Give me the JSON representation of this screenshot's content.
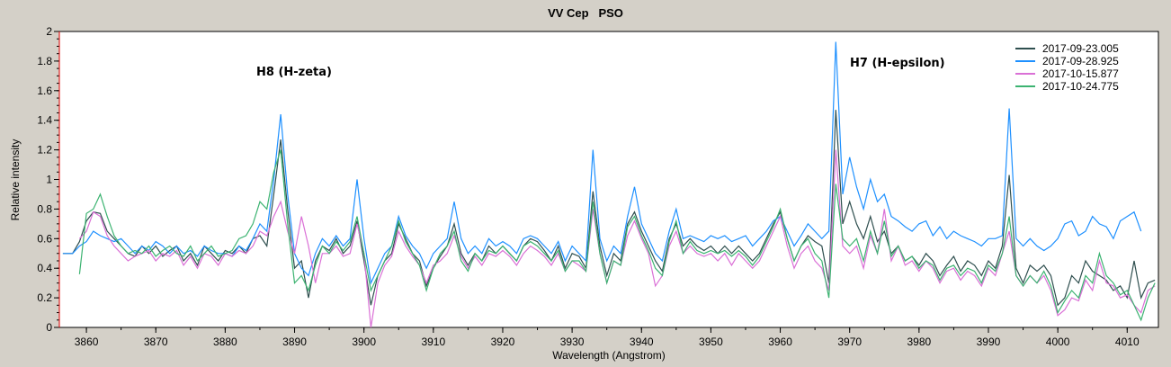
{
  "chart_data": {
    "type": "line",
    "title": "VV Cep   PSO",
    "xlabel": "Wavelength (Angstrom)",
    "ylabel": "Relative intensity",
    "xlim": [
      3856.1,
      4014.5
    ],
    "ylim": [
      0,
      2
    ],
    "xticks": [
      3860,
      3870,
      3880,
      3890,
      3900,
      3910,
      3920,
      3930,
      3940,
      3950,
      3960,
      3970,
      3980,
      3990,
      4000,
      4010
    ],
    "yticks": [
      0,
      0.2,
      0.4,
      0.6,
      0.8,
      1,
      1.2,
      1.4,
      1.6,
      1.8,
      2
    ],
    "legend_position": "top-right",
    "annotations": [
      {
        "text": "H8 (H-zeta)",
        "x": 3889,
        "y": 1.75
      },
      {
        "text": "H7 (H-epsilon)",
        "x": 3974,
        "y": 1.81
      }
    ],
    "x_start": 3857,
    "x_step": 1,
    "series": [
      {
        "name": "2017-09-23.005",
        "color": "#2f4f4f",
        "values": [
          0.5,
          0.5,
          0.58,
          0.72,
          0.78,
          0.77,
          0.65,
          0.6,
          0.55,
          0.5,
          0.48,
          0.55,
          0.5,
          0.55,
          0.48,
          0.52,
          0.55,
          0.45,
          0.5,
          0.42,
          0.55,
          0.5,
          0.45,
          0.52,
          0.5,
          0.55,
          0.5,
          0.6,
          0.62,
          0.55,
          0.9,
          1.27,
          0.8,
          0.4,
          0.45,
          0.2,
          0.45,
          0.55,
          0.52,
          0.6,
          0.5,
          0.55,
          0.72,
          0.45,
          0.15,
          0.35,
          0.45,
          0.5,
          0.7,
          0.6,
          0.5,
          0.45,
          0.28,
          0.4,
          0.48,
          0.55,
          0.7,
          0.5,
          0.42,
          0.5,
          0.45,
          0.55,
          0.5,
          0.55,
          0.5,
          0.45,
          0.55,
          0.6,
          0.58,
          0.52,
          0.45,
          0.55,
          0.4,
          0.5,
          0.48,
          0.4,
          0.92,
          0.55,
          0.35,
          0.5,
          0.45,
          0.7,
          0.78,
          0.65,
          0.55,
          0.45,
          0.38,
          0.6,
          0.7,
          0.55,
          0.6,
          0.55,
          0.52,
          0.55,
          0.5,
          0.55,
          0.5,
          0.55,
          0.5,
          0.45,
          0.5,
          0.6,
          0.7,
          0.78,
          0.6,
          0.45,
          0.55,
          0.62,
          0.58,
          0.55,
          0.3,
          1.47,
          0.7,
          0.85,
          0.7,
          0.6,
          0.75,
          0.58,
          0.65,
          0.5,
          0.55,
          0.45,
          0.48,
          0.42,
          0.5,
          0.45,
          0.35,
          0.42,
          0.48,
          0.38,
          0.45,
          0.42,
          0.35,
          0.45,
          0.4,
          0.55,
          1.03,
          0.4,
          0.3,
          0.42,
          0.38,
          0.42,
          0.35,
          0.15,
          0.2,
          0.35,
          0.3,
          0.45,
          0.38,
          0.35,
          0.32,
          0.25,
          0.28,
          0.2,
          0.45,
          0.2,
          0.3,
          0.32
        ]
      },
      {
        "name": "2017-09-28.925",
        "color": "#1e90ff",
        "values": [
          0.5,
          0.5,
          0.55,
          0.58,
          0.65,
          0.62,
          0.6,
          0.58,
          0.6,
          0.55,
          0.5,
          0.55,
          0.52,
          0.58,
          0.55,
          0.5,
          0.55,
          0.5,
          0.52,
          0.48,
          0.55,
          0.52,
          0.5,
          0.5,
          0.48,
          0.55,
          0.52,
          0.6,
          0.7,
          0.65,
          1.0,
          1.44,
          0.9,
          0.5,
          0.4,
          0.35,
          0.5,
          0.6,
          0.55,
          0.62,
          0.55,
          0.6,
          1.0,
          0.6,
          0.3,
          0.4,
          0.5,
          0.55,
          0.75,
          0.62,
          0.55,
          0.5,
          0.4,
          0.5,
          0.55,
          0.6,
          0.85,
          0.6,
          0.5,
          0.55,
          0.5,
          0.6,
          0.55,
          0.58,
          0.55,
          0.5,
          0.6,
          0.62,
          0.6,
          0.55,
          0.5,
          0.58,
          0.45,
          0.55,
          0.5,
          0.45,
          1.2,
          0.6,
          0.45,
          0.55,
          0.5,
          0.75,
          0.95,
          0.7,
          0.6,
          0.5,
          0.45,
          0.65,
          0.8,
          0.6,
          0.62,
          0.6,
          0.58,
          0.62,
          0.6,
          0.62,
          0.58,
          0.6,
          0.62,
          0.55,
          0.6,
          0.65,
          0.72,
          0.75,
          0.65,
          0.55,
          0.62,
          0.7,
          0.65,
          0.6,
          0.65,
          1.93,
          0.9,
          1.15,
          0.95,
          0.8,
          1.0,
          0.85,
          0.9,
          0.75,
          0.72,
          0.68,
          0.65,
          0.7,
          0.72,
          0.62,
          0.68,
          0.6,
          0.65,
          0.62,
          0.6,
          0.58,
          0.55,
          0.6,
          0.6,
          0.62,
          1.48,
          0.6,
          0.55,
          0.6,
          0.55,
          0.52,
          0.55,
          0.6,
          0.7,
          0.72,
          0.62,
          0.65,
          0.75,
          0.7,
          0.68,
          0.6,
          0.72,
          0.75,
          0.78,
          0.65,
          null,
          null
        ]
      },
      {
        "name": "2017-10-15.877",
        "color": "#da70d6",
        "values": [
          null,
          null,
          0.6,
          0.65,
          0.78,
          0.75,
          0.62,
          0.55,
          0.5,
          0.45,
          0.48,
          0.5,
          0.52,
          0.45,
          0.5,
          0.48,
          0.52,
          0.42,
          0.48,
          0.4,
          0.5,
          0.48,
          0.42,
          0.5,
          0.48,
          0.52,
          0.5,
          0.55,
          0.65,
          0.62,
          0.75,
          0.85,
          0.65,
          0.5,
          0.75,
          0.55,
          0.3,
          0.5,
          0.5,
          0.55,
          0.48,
          0.5,
          0.7,
          0.5,
          0.0,
          0.3,
          0.42,
          0.48,
          0.65,
          0.55,
          0.48,
          0.42,
          0.3,
          0.42,
          0.45,
          0.5,
          0.62,
          0.48,
          0.4,
          0.48,
          0.42,
          0.5,
          0.48,
          0.52,
          0.48,
          0.42,
          0.5,
          0.55,
          0.52,
          0.48,
          0.42,
          0.5,
          0.38,
          0.45,
          0.42,
          0.38,
          0.8,
          0.5,
          0.3,
          0.45,
          0.42,
          0.62,
          0.72,
          0.6,
          0.5,
          0.28,
          0.35,
          0.55,
          0.65,
          0.5,
          0.55,
          0.5,
          0.48,
          0.5,
          0.45,
          0.5,
          0.42,
          0.5,
          0.45,
          0.4,
          0.45,
          0.55,
          0.65,
          0.75,
          0.55,
          0.4,
          0.5,
          0.55,
          0.45,
          0.4,
          0.25,
          1.2,
          0.55,
          0.5,
          0.55,
          0.4,
          0.62,
          0.5,
          0.8,
          0.45,
          0.55,
          0.42,
          0.45,
          0.38,
          0.45,
          0.4,
          0.3,
          0.38,
          0.4,
          0.32,
          0.38,
          0.35,
          0.28,
          0.4,
          0.35,
          0.5,
          0.65,
          0.35,
          0.28,
          0.35,
          0.3,
          0.35,
          0.25,
          0.08,
          0.12,
          0.2,
          0.18,
          0.32,
          0.25,
          0.45,
          0.3,
          0.28,
          0.2,
          0.22,
          0.15,
          0.1,
          0.25,
          0.28
        ]
      },
      {
        "name": "2017-10-24.775",
        "color": "#3cb371",
        "values": [
          null,
          null,
          0.36,
          0.77,
          0.8,
          0.9,
          0.75,
          0.62,
          0.55,
          0.5,
          0.52,
          0.5,
          0.55,
          0.48,
          0.52,
          0.55,
          0.5,
          0.48,
          0.55,
          0.45,
          0.5,
          0.55,
          0.48,
          0.5,
          0.52,
          0.6,
          0.62,
          0.7,
          0.85,
          0.8,
          1.05,
          1.2,
          0.7,
          0.3,
          0.35,
          0.25,
          0.42,
          0.55,
          0.5,
          0.58,
          0.52,
          0.58,
          0.75,
          0.5,
          0.25,
          0.35,
          0.45,
          0.55,
          0.72,
          0.58,
          0.5,
          0.42,
          0.25,
          0.4,
          0.5,
          0.55,
          0.65,
          0.45,
          0.38,
          0.5,
          0.45,
          0.52,
          0.5,
          0.55,
          0.5,
          0.45,
          0.55,
          0.58,
          0.55,
          0.5,
          0.45,
          0.52,
          0.38,
          0.45,
          0.45,
          0.38,
          0.85,
          0.5,
          0.3,
          0.45,
          0.42,
          0.68,
          0.75,
          0.62,
          0.52,
          0.4,
          0.35,
          0.58,
          0.72,
          0.5,
          0.58,
          0.52,
          0.5,
          0.52,
          0.5,
          0.52,
          0.48,
          0.52,
          0.48,
          0.42,
          0.48,
          0.58,
          0.68,
          0.8,
          0.6,
          0.45,
          0.55,
          0.6,
          0.5,
          0.45,
          0.2,
          0.97,
          0.6,
          0.55,
          0.6,
          0.45,
          0.65,
          0.5,
          0.72,
          0.48,
          0.55,
          0.45,
          0.48,
          0.4,
          0.45,
          0.42,
          0.32,
          0.4,
          0.42,
          0.35,
          0.4,
          0.38,
          0.3,
          0.42,
          0.38,
          0.5,
          0.75,
          0.35,
          0.28,
          0.35,
          0.3,
          0.38,
          0.28,
          0.1,
          0.18,
          0.25,
          0.2,
          0.35,
          0.3,
          0.5,
          0.35,
          0.3,
          0.22,
          0.25,
          0.15,
          0.05,
          0.2,
          0.3
        ]
      }
    ]
  }
}
